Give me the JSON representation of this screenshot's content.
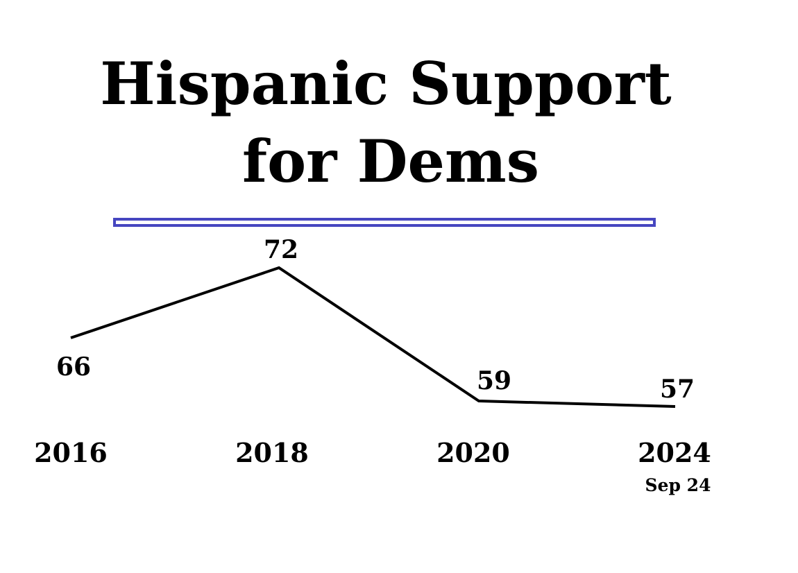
{
  "chart_data": {
    "type": "line",
    "title_lines": [
      "Hispanic Support",
      "for Dems"
    ],
    "categories": [
      "2016",
      "2018",
      "2020",
      "2024"
    ],
    "category_sublabels": [
      "",
      "",
      "",
      "Sep 24"
    ],
    "values": [
      66,
      72,
      59,
      57
    ],
    "data_labels": [
      "66",
      "72",
      "59",
      "57"
    ],
    "ylim": [
      50,
      80
    ],
    "grid": false,
    "legend": "none"
  },
  "colors": {
    "line": "#000000",
    "divider": "#4646c0",
    "background": "#ffffff"
  }
}
